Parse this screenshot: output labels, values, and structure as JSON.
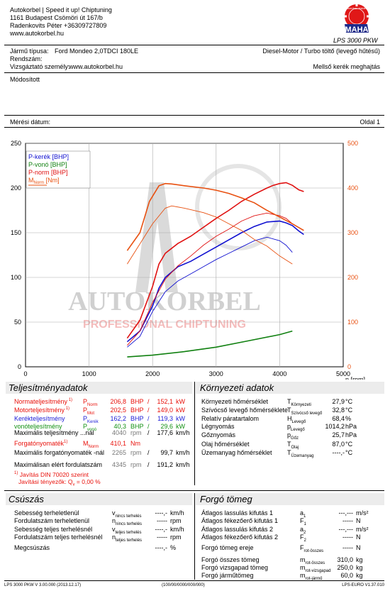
{
  "header": {
    "company_line1": "Autokorbel | Speed it up! Chiptuning",
    "company_line2": "1161 Budapest Csömöri út 167/b",
    "company_line3": "Radenkovits Péter +36309727809",
    "company_line4": "www.autokorbel.hu",
    "logo_text": "MAHA",
    "logo_ring_text": "Maschinenbau Haldenwang",
    "device": "LPS 3000 PKW"
  },
  "vehicle": {
    "type_label": "Jármű típusa:",
    "type_value": "Ford Mondeo 2,0TDCI 180LE",
    "plate_label": "Rendszám:",
    "tester_label": "Vizsgáztató személy:",
    "tester_value": "www.autokorbel.hu",
    "engine": "Diesel-Motor / Turbo töltő (levegő hűtésű)",
    "drive": "Mellső kerék meghajtás"
  },
  "modified_label": "Módosított",
  "measure_date_label": "Mérési dátum:",
  "page_label": "Oldal 1",
  "chart_data": {
    "type": "line",
    "x_unit": "n [rpm]",
    "xlim": [
      0,
      5000
    ],
    "x_ticks": [
      "0",
      "1000",
      "2000",
      "3000",
      "4000",
      "5000"
    ],
    "y_left_ticks": [
      "0",
      "50",
      "100",
      "150",
      "200",
      "250"
    ],
    "y_right_ticks": [
      "0",
      "100",
      "200",
      "300",
      "400",
      "500"
    ],
    "ylim_left": [
      0,
      250
    ],
    "ylim_right": [
      0,
      500
    ],
    "legend": [
      "P-kerék [BHP]",
      "P-vonó [BHP]",
      "P-norm [BHP]",
      "M",
      "Norm",
      " [Nm]"
    ],
    "watermark_line1": "AUTOKORBEL",
    "watermark_line2": "PROFESSIONAL CHIPTUNING",
    "colors": {
      "wheel": "#1010d0",
      "drag": "#108010",
      "norm": "#e01010",
      "torque": "#e85010"
    },
    "series": [
      {
        "name": "P-kerék [BHP]",
        "axis": "left",
        "color": "#1010d0",
        "x": [
          1600,
          1800,
          2000,
          2100,
          2200,
          2400,
          2600,
          2800,
          3000,
          3200,
          3400,
          3600,
          3800,
          4000,
          4100,
          4200,
          4300,
          4380
        ],
        "y": [
          28,
          40,
          68,
          88,
          100,
          112,
          118,
          126,
          134,
          142,
          150,
          157,
          162,
          163,
          161,
          158,
          152,
          148
        ]
      },
      {
        "name": "P-kerék (original)",
        "axis": "left",
        "color": "#1010d0",
        "x": [
          1600,
          1800,
          2000,
          2200,
          2400,
          2600,
          2800,
          3000,
          3200,
          3400,
          3600,
          3800,
          4000,
          4100,
          4200
        ],
        "y": [
          22,
          34,
          62,
          84,
          96,
          104,
          112,
          120,
          127,
          134,
          141,
          145,
          141,
          136,
          128
        ]
      },
      {
        "name": "P-vonó [BHP]",
        "axis": "left",
        "color": "#108010",
        "x": [
          1600,
          2000,
          2500,
          3000,
          3500,
          4000,
          4200
        ],
        "y": [
          11,
          13,
          17,
          22,
          29,
          36,
          40
        ]
      },
      {
        "name": "P-norm [BHP]",
        "axis": "left",
        "color": "#e01010",
        "x": [
          1600,
          1800,
          2000,
          2100,
          2200,
          2400,
          2600,
          2800,
          3000,
          3200,
          3400,
          3600,
          3800,
          3900,
          4000,
          4100,
          4200,
          4300,
          4380
        ],
        "y": [
          32,
          52,
          90,
          115,
          127,
          138,
          146,
          156,
          166,
          175,
          185,
          193,
          200,
          203,
          205,
          206,
          203,
          198,
          196
        ]
      },
      {
        "name": "P-norm (original)",
        "axis": "left",
        "color": "#e01010",
        "x": [
          1600,
          1800,
          2000,
          2200,
          2400,
          2600,
          2800,
          3000,
          3200,
          3400,
          3600,
          3800,
          4000,
          4100,
          4200
        ],
        "y": [
          24,
          40,
          72,
          98,
          113,
          124,
          136,
          146,
          154,
          163,
          169,
          172,
          169,
          166,
          160
        ]
      },
      {
        "name": "M Norm [Nm]",
        "axis": "right",
        "color": "#e85010",
        "x": [
          1600,
          1800,
          1950,
          2100,
          2200,
          2300,
          2500,
          2800,
          3000,
          3200,
          3400,
          3600,
          3800,
          4000,
          4200,
          4380
        ],
        "y": [
          260,
          300,
          370,
          405,
          410,
          409,
          405,
          400,
          395,
          388,
          378,
          367,
          350,
          335,
          320,
          305
        ]
      },
      {
        "name": "M Norm (original)",
        "axis": "right",
        "color": "#e85010",
        "x": [
          1600,
          1800,
          2000,
          2200,
          2300,
          2500,
          2800,
          3000,
          3200,
          3400,
          3600,
          3800,
          4000,
          4200
        ],
        "y": [
          230,
          275,
          320,
          355,
          360,
          355,
          345,
          335,
          320,
          305,
          285,
          270,
          248,
          230
        ]
      }
    ]
  },
  "performance": {
    "title": "Teljesítményadatok",
    "rows": [
      {
        "label": "Normateljesítmény",
        "sup": "1)",
        "sym": "P",
        "symsub": "Norm",
        "v1": "206,8",
        "u1": "BHP",
        "v2": "152,1",
        "u2": "kW",
        "cls": "red"
      },
      {
        "label": "Motorteljesítmény",
        "sup": "1)",
        "sym": "P",
        "symsub": "Mot",
        "v1": "202,5",
        "u1": "BHP",
        "v2": "149,0",
        "u2": "kW",
        "cls": "red"
      },
      {
        "label": "Kerékteljesítmény",
        "sup": "",
        "sym": "P",
        "symsub": "Kerék",
        "v1": "162,2",
        "u1": "BHP",
        "v2": "119,3",
        "u2": "kW",
        "cls": "blue"
      },
      {
        "label": "vonóteljesítmény",
        "sup": "",
        "sym": "P",
        "symsub": "vonó",
        "v1": "40,3",
        "u1": "BHP",
        "v2": "29,6",
        "u2": "kW",
        "cls": "green"
      }
    ],
    "max_power_label": "Maximális teljesítmény ...nál",
    "max_power_rpm": "4040",
    "max_power_speed": "177,6",
    "torque_label": "Forgatónyomaték",
    "torque_sup": "1)",
    "torque_sym": "M",
    "torque_symsub": "Norm",
    "torque_value": "410,1",
    "torque_unit": "Nm",
    "max_torque_label": "Maximális forgatónyomaték -nál",
    "max_torque_rpm": "2265",
    "max_torque_speed": "99,7",
    "max_rpm_label": "Maximálisan elért fordulatszám",
    "max_rpm_rpm": "4345",
    "max_rpm_speed": "191,2",
    "rpm_unit": "rpm",
    "speed_unit": "km/h",
    "slash": "/",
    "din_line1": "Javítás DIN 70020 szerint",
    "din_sup": "1)",
    "din_line2": "Javítási tényezők: Q",
    "din_q_sub": "v",
    "din_q_value": "=     0,00 %"
  },
  "environment": {
    "title": "Környezeti adatok",
    "rows": [
      {
        "label": "Környezeti hőmérséklet",
        "sym": "T",
        "symsub": "Környezeti",
        "value": "27,9",
        "unit": "°C"
      },
      {
        "label": "Szívócső levegő hőmérséklete",
        "sym": "T",
        "symsub": "Szívócső levegő",
        "value": "32,8",
        "unit": "°C"
      },
      {
        "label": "Relatív páratartalom",
        "sym": "H",
        "symsub": "Levegő",
        "value": "68,4",
        "unit": "%"
      },
      {
        "label": "Légnyomás",
        "sym": "p",
        "symsub": "Levegő",
        "value": "1014,2",
        "unit": "hPa"
      },
      {
        "label": "Gőznyomás",
        "sym": "p",
        "symsub": "Gőz",
        "value": "25,7",
        "unit": "hPa"
      },
      {
        "label": "Olaj hőmérséklet",
        "sym": "T",
        "symsub": "Olaj",
        "value": "87,0",
        "unit": "°C"
      },
      {
        "label": "Üzemanyag hőmérséklet",
        "sym": "T",
        "symsub": "Üzemanyag",
        "value": "----,-",
        "unit": "°C"
      }
    ]
  },
  "slip": {
    "title": "Csúszás",
    "rows": [
      {
        "label": "Sebesség terheletlenül",
        "sym": "v",
        "symsub": "nincs terhelés",
        "value": "----,-",
        "unit": "km/h"
      },
      {
        "label": "Fordulatszám terheletlenül",
        "sym": "n",
        "symsub": "nincs terhelés",
        "value": "-----",
        "unit": "rpm"
      },
      {
        "label": "Sebesség teljes terhelésnél",
        "sym": "v",
        "symsub": "teljes terhelés",
        "value": "----,-",
        "unit": "km/h"
      },
      {
        "label": "Fordulatszám teljes terhelésnél",
        "sym": "n",
        "symsub": "teljes terhelés",
        "value": "-----",
        "unit": "rpm"
      },
      {
        "label": "Megcsúszás",
        "sym": "",
        "symsub": "",
        "value": "----,-",
        "unit": "%"
      }
    ]
  },
  "inertia": {
    "title": "Forgó tömeg",
    "rows": [
      {
        "label": "Átlagos lassulás kifutás 1",
        "sym": "a",
        "symsub": "1",
        "value": "---,---",
        "unit": "m/s²"
      },
      {
        "label": "Átlagos fékezőerő kifutás 1",
        "sym": "F",
        "symsub": "1",
        "value": "-----",
        "unit": "N"
      },
      {
        "label": "Átlagos lassulás kifutás 2",
        "sym": "a",
        "symsub": "2",
        "value": "---,---",
        "unit": "m/s²"
      },
      {
        "label": "Átlagos fékezőerő kifutás 2",
        "sym": "F",
        "symsub": "2",
        "value": "-----",
        "unit": "N"
      },
      {
        "label": "Forgó tömeg ereje",
        "sym": "F",
        "symsub": "rot-összes",
        "value": "-----",
        "unit": "N"
      },
      {
        "label": "Forgó összes tömeg",
        "sym": "m",
        "symsub": "rot-összes",
        "value": "310,0",
        "unit": "kg"
      },
      {
        "label": "Forgó vizsgapad tömeg",
        "sym": "m",
        "symsub": "rot-vizsgapad",
        "value": "250,0",
        "unit": "kg"
      },
      {
        "label": "Forgó járműtömeg",
        "sym": "m",
        "symsub": "rot-jármű",
        "value": "60,0",
        "unit": "kg"
      }
    ]
  },
  "footer": {
    "left": "LPS 3000 PKW V 3.00.000 (2013.12.17)",
    "center": "(100/00/0000/000/000)",
    "right": "LPS-EURO V1.37.010"
  }
}
